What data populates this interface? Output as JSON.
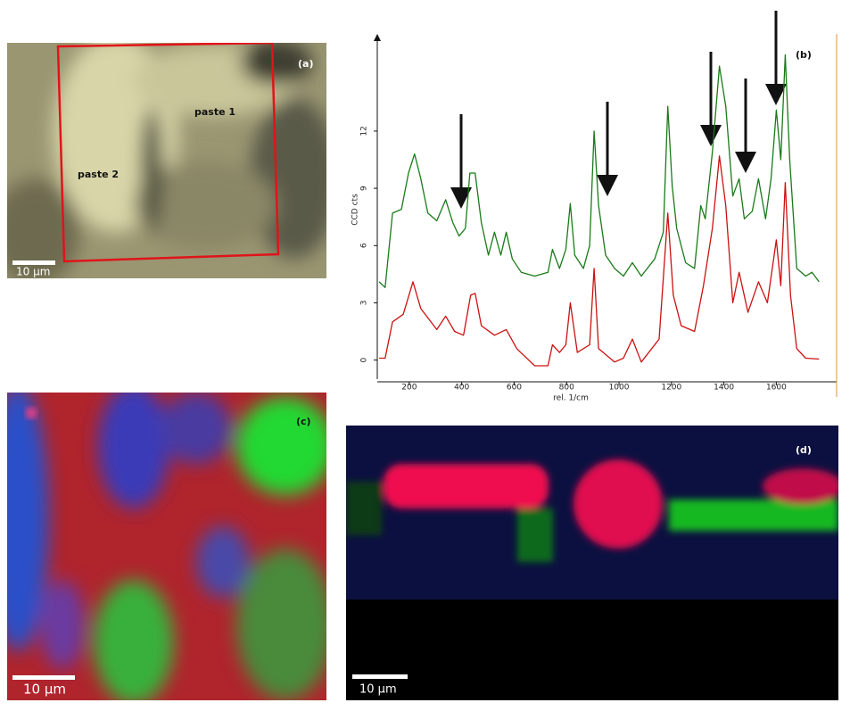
{
  "panels": [
    {
      "label": "(a)",
      "annotations": [
        "paste 1",
        "paste 2"
      ],
      "scale_bar": "10 µm"
    },
    {
      "label": "(c)",
      "scale_bar": "10 µm"
    },
    {
      "label": "(d)",
      "scale_bar": "10 µm"
    }
  ],
  "chart_data": {
    "type": "line",
    "label": "(b)",
    "xlabel": "rel. 1/cm",
    "ylabel": "CCD cts",
    "xlim": [
      80,
      1830
    ],
    "ylim": [
      -1,
      17
    ],
    "xticks": [
      200,
      400,
      600,
      800,
      1000,
      1200,
      1400,
      1600
    ],
    "yticks": [
      0,
      3,
      6,
      9,
      12
    ],
    "series": [
      {
        "color": "#1a7a1a",
        "x": [
          85,
          108,
          136,
          170,
          197,
          220,
          244,
          271,
          305,
          339,
          366,
          390,
          414,
          431,
          451,
          475,
          502,
          525,
          549,
          570,
          593,
          627,
          678,
          729,
          746,
          773,
          797,
          814,
          831,
          864,
          888,
          905,
          922,
          949,
          983,
          1017,
          1051,
          1085,
          1136,
          1169,
          1186,
          1203,
          1220,
          1254,
          1288,
          1312,
          1329,
          1356,
          1383,
          1407,
          1434,
          1458,
          1478,
          1508,
          1532,
          1559,
          1580,
          1600,
          1617,
          1634,
          1651,
          1678,
          1712,
          1736,
          1763
        ],
        "values": [
          4.1,
          3.8,
          7.7,
          7.9,
          9.8,
          10.8,
          9.5,
          7.7,
          7.3,
          8.4,
          7.2,
          6.5,
          6.9,
          9.8,
          9.8,
          7.2,
          5.5,
          6.7,
          5.5,
          6.7,
          5.3,
          4.6,
          4.4,
          4.6,
          5.8,
          4.8,
          5.8,
          8.2,
          5.5,
          4.8,
          6.0,
          12.0,
          8.1,
          5.5,
          4.8,
          4.4,
          5.1,
          4.4,
          5.3,
          6.7,
          13.3,
          9.1,
          6.9,
          5.1,
          4.8,
          8.1,
          7.4,
          10.9,
          15.4,
          13.3,
          8.6,
          9.5,
          7.4,
          7.8,
          9.5,
          7.4,
          9.5,
          13.1,
          10.5,
          16.0,
          10.5,
          4.8,
          4.4,
          4.6,
          4.1
        ]
      },
      {
        "color": "#cc1111",
        "x": [
          85,
          108,
          136,
          177,
          214,
          244,
          305,
          339,
          373,
          407,
          434,
          451,
          475,
          525,
          570,
          610,
          678,
          729,
          746,
          773,
          797,
          814,
          841,
          888,
          905,
          922,
          983,
          1017,
          1051,
          1085,
          1153,
          1186,
          1207,
          1237,
          1288,
          1322,
          1356,
          1383,
          1407,
          1434,
          1458,
          1492,
          1532,
          1566,
          1600,
          1617,
          1634,
          1654,
          1678,
          1712,
          1763
        ],
        "values": [
          0.1,
          0.1,
          2.0,
          2.4,
          4.1,
          2.7,
          1.6,
          2.3,
          1.5,
          1.3,
          3.4,
          3.5,
          1.8,
          1.3,
          1.6,
          0.6,
          -0.3,
          -0.3,
          0.8,
          0.4,
          0.8,
          3.0,
          0.4,
          0.8,
          4.8,
          0.6,
          -0.1,
          0.1,
          1.1,
          -0.1,
          1.1,
          7.7,
          3.4,
          1.8,
          1.5,
          3.9,
          6.9,
          10.7,
          8.1,
          3.0,
          4.6,
          2.5,
          4.1,
          3.0,
          6.3,
          3.9,
          9.3,
          3.4,
          0.6,
          0.1,
          0.05
        ]
      }
    ]
  }
}
